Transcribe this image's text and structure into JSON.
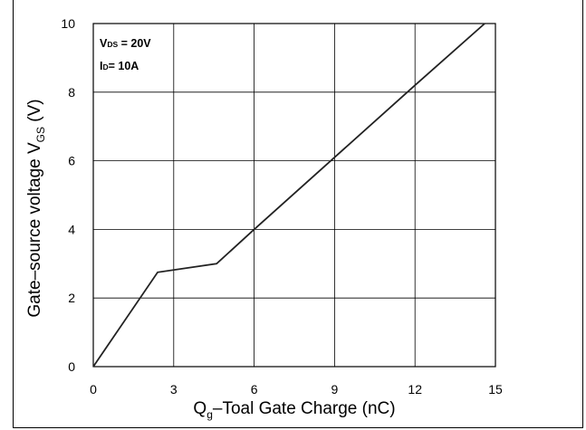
{
  "chart_data": {
    "type": "line",
    "xlabel": {
      "main": "Q",
      "sub": "g",
      "rest": "–Toal Gate Charge  (nC)"
    },
    "ylabel": {
      "main": "Gate–source voltage V",
      "sub": "GS",
      "rest": " (V)"
    },
    "xlim": [
      0,
      15
    ],
    "ylim": [
      0,
      10
    ],
    "xticks": [
      0,
      3,
      6,
      9,
      12,
      15
    ],
    "yticks": [
      0,
      2,
      4,
      6,
      8,
      10
    ],
    "xtick_labels": [
      "0",
      "3",
      "6",
      "9",
      "12",
      "15"
    ],
    "ytick_labels": [
      "0",
      "2",
      "4",
      "6",
      "8",
      "10"
    ],
    "grid": true,
    "annotations": [
      {
        "main": "V",
        "sub": "DS",
        "rest": " = 20V"
      },
      {
        "main": "I",
        "sub": "D",
        "rest": "= 10A"
      }
    ],
    "series": [
      {
        "x": [
          0,
          2.4,
          4.6,
          6.0,
          9.0,
          12.0,
          14.6
        ],
        "y": [
          0,
          2.75,
          3.0,
          4.0,
          6.1,
          8.2,
          10.0
        ]
      }
    ]
  }
}
